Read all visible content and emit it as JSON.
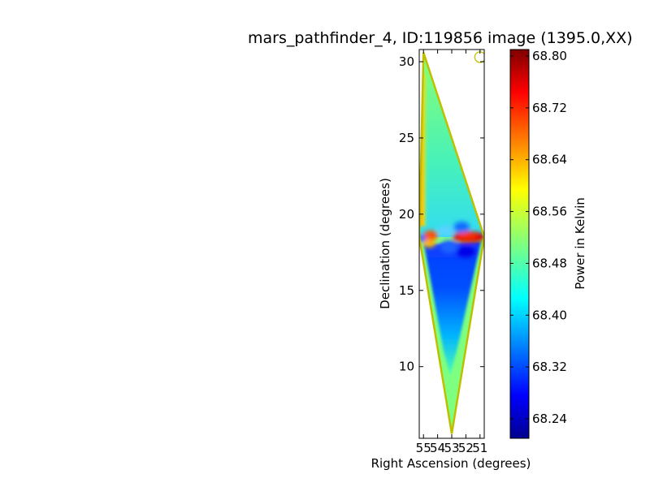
{
  "chart_data": {
    "type": "heatmap",
    "title": "mars_pathfinder_4, ID:119856 image (1395.0,XX)",
    "xlabel": "Right Ascension (degrees)",
    "ylabel": "Declination (degrees)",
    "x_tick_labels": [
      "55",
      "54",
      "53",
      "52",
      "51"
    ],
    "x_ticks": [
      55,
      54,
      53,
      52,
      51
    ],
    "xlim": [
      55.3,
      50.7
    ],
    "y_ticks": [
      10,
      15,
      20,
      25,
      30
    ],
    "y_tick_labels": [
      "10",
      "15",
      "20",
      "25",
      "30"
    ],
    "ylim": [
      5.3,
      30.8
    ],
    "colorbar": {
      "label": "Power in Kelvin",
      "range": [
        68.21,
        68.81
      ],
      "ticks": [
        68.24,
        68.32,
        68.4,
        68.48,
        68.56,
        68.64,
        68.72,
        68.8
      ],
      "tick_labels": [
        "68.24",
        "68.32",
        "68.40",
        "68.48",
        "68.56",
        "68.64",
        "68.72",
        "68.80"
      ],
      "colormap": "jet"
    },
    "footprint": {
      "top": [
        55,
        30.6
      ],
      "left": [
        55.3,
        18.5
      ],
      "right": [
        50.7,
        18.5
      ],
      "bottom": [
        53,
        5.6
      ],
      "edge_color": "#bfbf00"
    },
    "beam_marker": {
      "x": 51.0,
      "y": 30.3,
      "shape": "circle",
      "color": "#bfbf00"
    },
    "features": [
      {
        "name": "Equatorial band",
        "dec": 18.5,
        "value_range": [
          68.28,
          68.8
        ]
      },
      {
        "name": "Low-power region",
        "dec_range": [
          11,
          18
        ],
        "value": 68.28
      },
      {
        "name": "Upper field",
        "dec_range": [
          20,
          30
        ],
        "value": 68.48
      },
      {
        "name": "Left edge ridge",
        "dec_range": [
          19,
          30
        ],
        "value": 68.66
      }
    ]
  },
  "colors": {
    "frame": "#000000",
    "edge": "#bfbf00",
    "background": "#ffffff"
  }
}
